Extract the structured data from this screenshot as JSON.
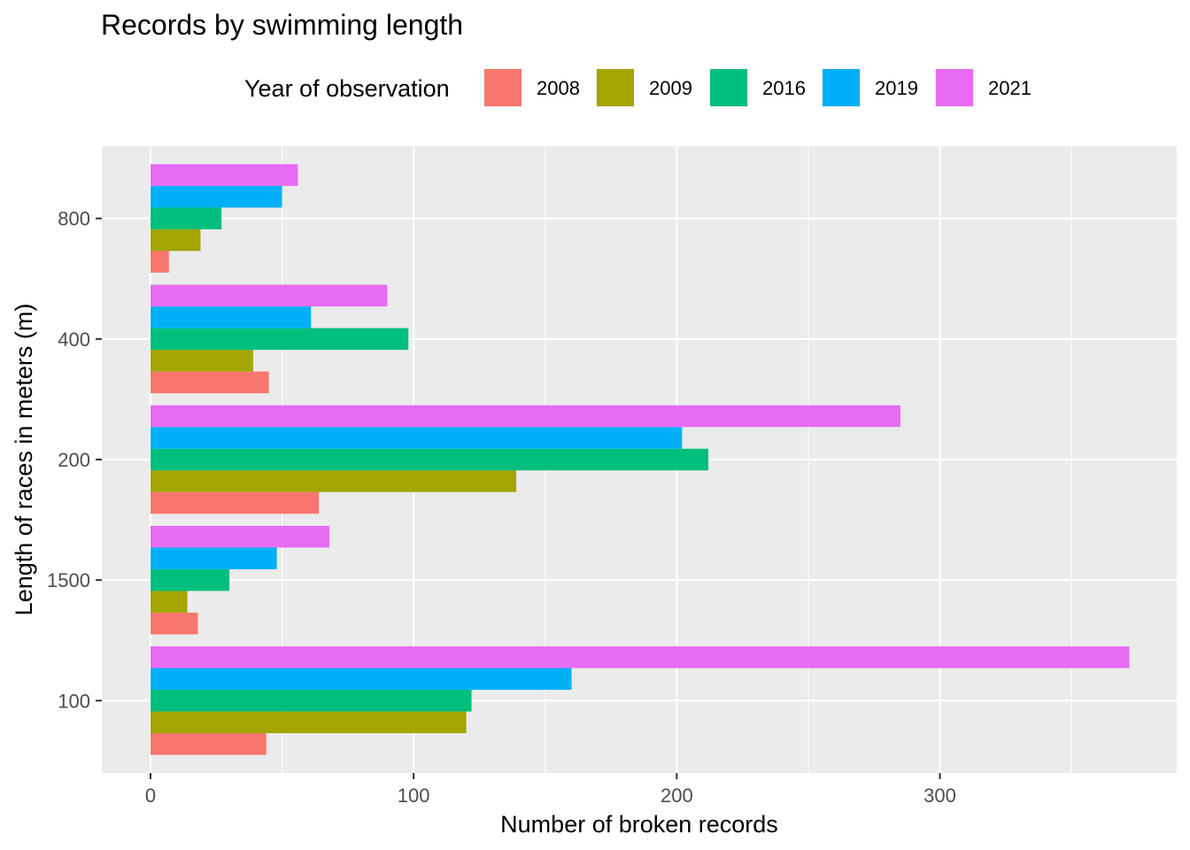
{
  "chart_data": {
    "type": "bar",
    "orientation": "horizontal",
    "title": "Records by swimming length",
    "xlabel": "Number of broken records",
    "ylabel": "Length of races in meters (m)",
    "categories": [
      "100",
      "1500",
      "200",
      "400",
      "800"
    ],
    "xlim": [
      -18.5,
      390
    ],
    "x_ticks": [
      "0",
      "100",
      "200",
      "300"
    ],
    "grid": true,
    "legend": {
      "title": "Year of observation",
      "position": "top"
    },
    "series": [
      {
        "name": "2008",
        "color": "#F8766D",
        "values": [
          44,
          18,
          64,
          45,
          7
        ]
      },
      {
        "name": "2009",
        "color": "#A3A500",
        "values": [
          120,
          14,
          139,
          39,
          19
        ]
      },
      {
        "name": "2016",
        "color": "#00BF7D",
        "values": [
          122,
          30,
          212,
          98,
          27
        ]
      },
      {
        "name": "2019",
        "color": "#00B0F6",
        "values": [
          160,
          48,
          202,
          61,
          50
        ]
      },
      {
        "name": "2021",
        "color": "#E76BF3",
        "values": [
          372,
          68,
          285,
          90,
          56
        ]
      }
    ]
  }
}
